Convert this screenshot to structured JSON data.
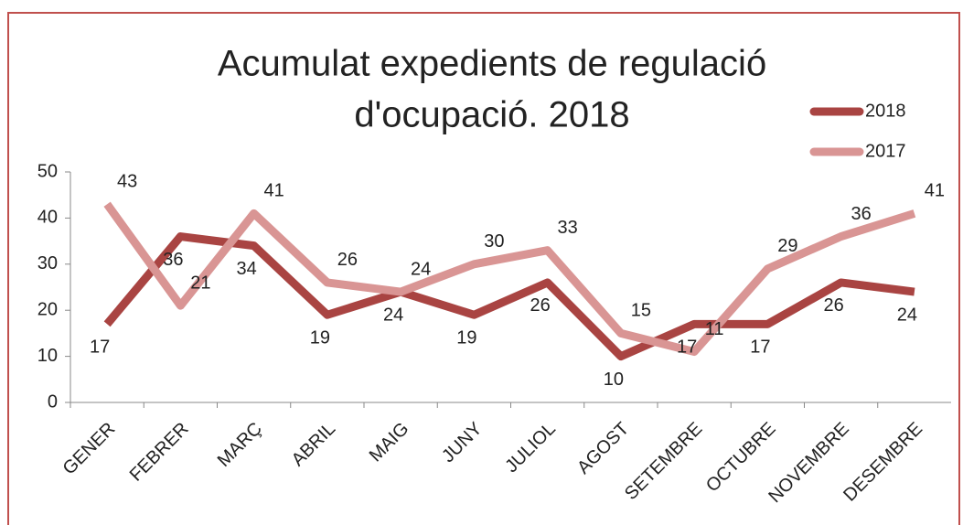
{
  "chart_data": {
    "type": "line",
    "title": [
      "Acumulat expedients de regulació",
      "d'ocupació. 2018"
    ],
    "categories": [
      "GENER",
      "FEBRER",
      "MARÇ",
      "ABRIL",
      "MAIG",
      "JUNY",
      "JULIOL",
      "AGOST",
      "SETEMBRE",
      "OCTUBRE",
      "NOVEMBRE",
      "DESEMBRE"
    ],
    "series": [
      {
        "name": "2018",
        "color": "#a94442",
        "values": [
          17,
          36,
          34,
          19,
          24,
          19,
          26,
          10,
          17,
          17,
          26,
          24
        ]
      },
      {
        "name": "2017",
        "color": "#d99594",
        "values": [
          43,
          21,
          41,
          26,
          24,
          30,
          33,
          15,
          11,
          29,
          36,
          41
        ]
      }
    ],
    "ylim": [
      0,
      50
    ],
    "yticks": [
      0,
      10,
      20,
      30,
      40,
      50
    ],
    "legend": "top-right"
  }
}
